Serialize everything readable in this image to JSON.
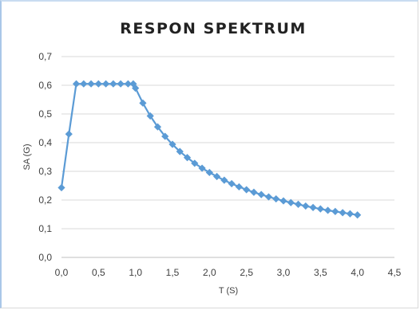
{
  "chart_data": {
    "type": "line",
    "title": "RESPON SPEKTRUM",
    "xlabel": "T (S)",
    "ylabel": "SA (G)",
    "xlim": [
      0,
      4.5
    ],
    "ylim": [
      0,
      0.7
    ],
    "xticks": [
      "0,0",
      "0,5",
      "1,0",
      "1,5",
      "2,0",
      "2,5",
      "3,0",
      "3,5",
      "4,0",
      "4,5"
    ],
    "yticks": [
      "0,0",
      "0,1",
      "0,2",
      "0,3",
      "0,4",
      "0,5",
      "0,6",
      "0,7"
    ],
    "grid": "horizontal",
    "legend": "none",
    "marker": "diamond",
    "color": "#5b9bd5",
    "series": [
      {
        "x": [
          0.0,
          0.1,
          0.2,
          0.3,
          0.4,
          0.5,
          0.6,
          0.7,
          0.8,
          0.9,
          0.97,
          1.0,
          1.1,
          1.2,
          1.3,
          1.4,
          1.5,
          1.6,
          1.7,
          1.8,
          1.9,
          2.0,
          2.1,
          2.2,
          2.3,
          2.4,
          2.5,
          2.6,
          2.7,
          2.8,
          2.9,
          3.0,
          3.1,
          3.2,
          3.3,
          3.4,
          3.5,
          3.6,
          3.7,
          3.8,
          3.9,
          4.0
        ],
        "y": [
          0.243,
          0.43,
          0.605,
          0.605,
          0.605,
          0.605,
          0.605,
          0.605,
          0.605,
          0.605,
          0.605,
          0.59,
          0.538,
          0.493,
          0.455,
          0.422,
          0.394,
          0.369,
          0.348,
          0.328,
          0.311,
          0.296,
          0.282,
          0.269,
          0.257,
          0.246,
          0.236,
          0.227,
          0.219,
          0.211,
          0.204,
          0.197,
          0.191,
          0.185,
          0.179,
          0.174,
          0.169,
          0.164,
          0.16,
          0.156,
          0.152,
          0.148
        ]
      }
    ]
  }
}
